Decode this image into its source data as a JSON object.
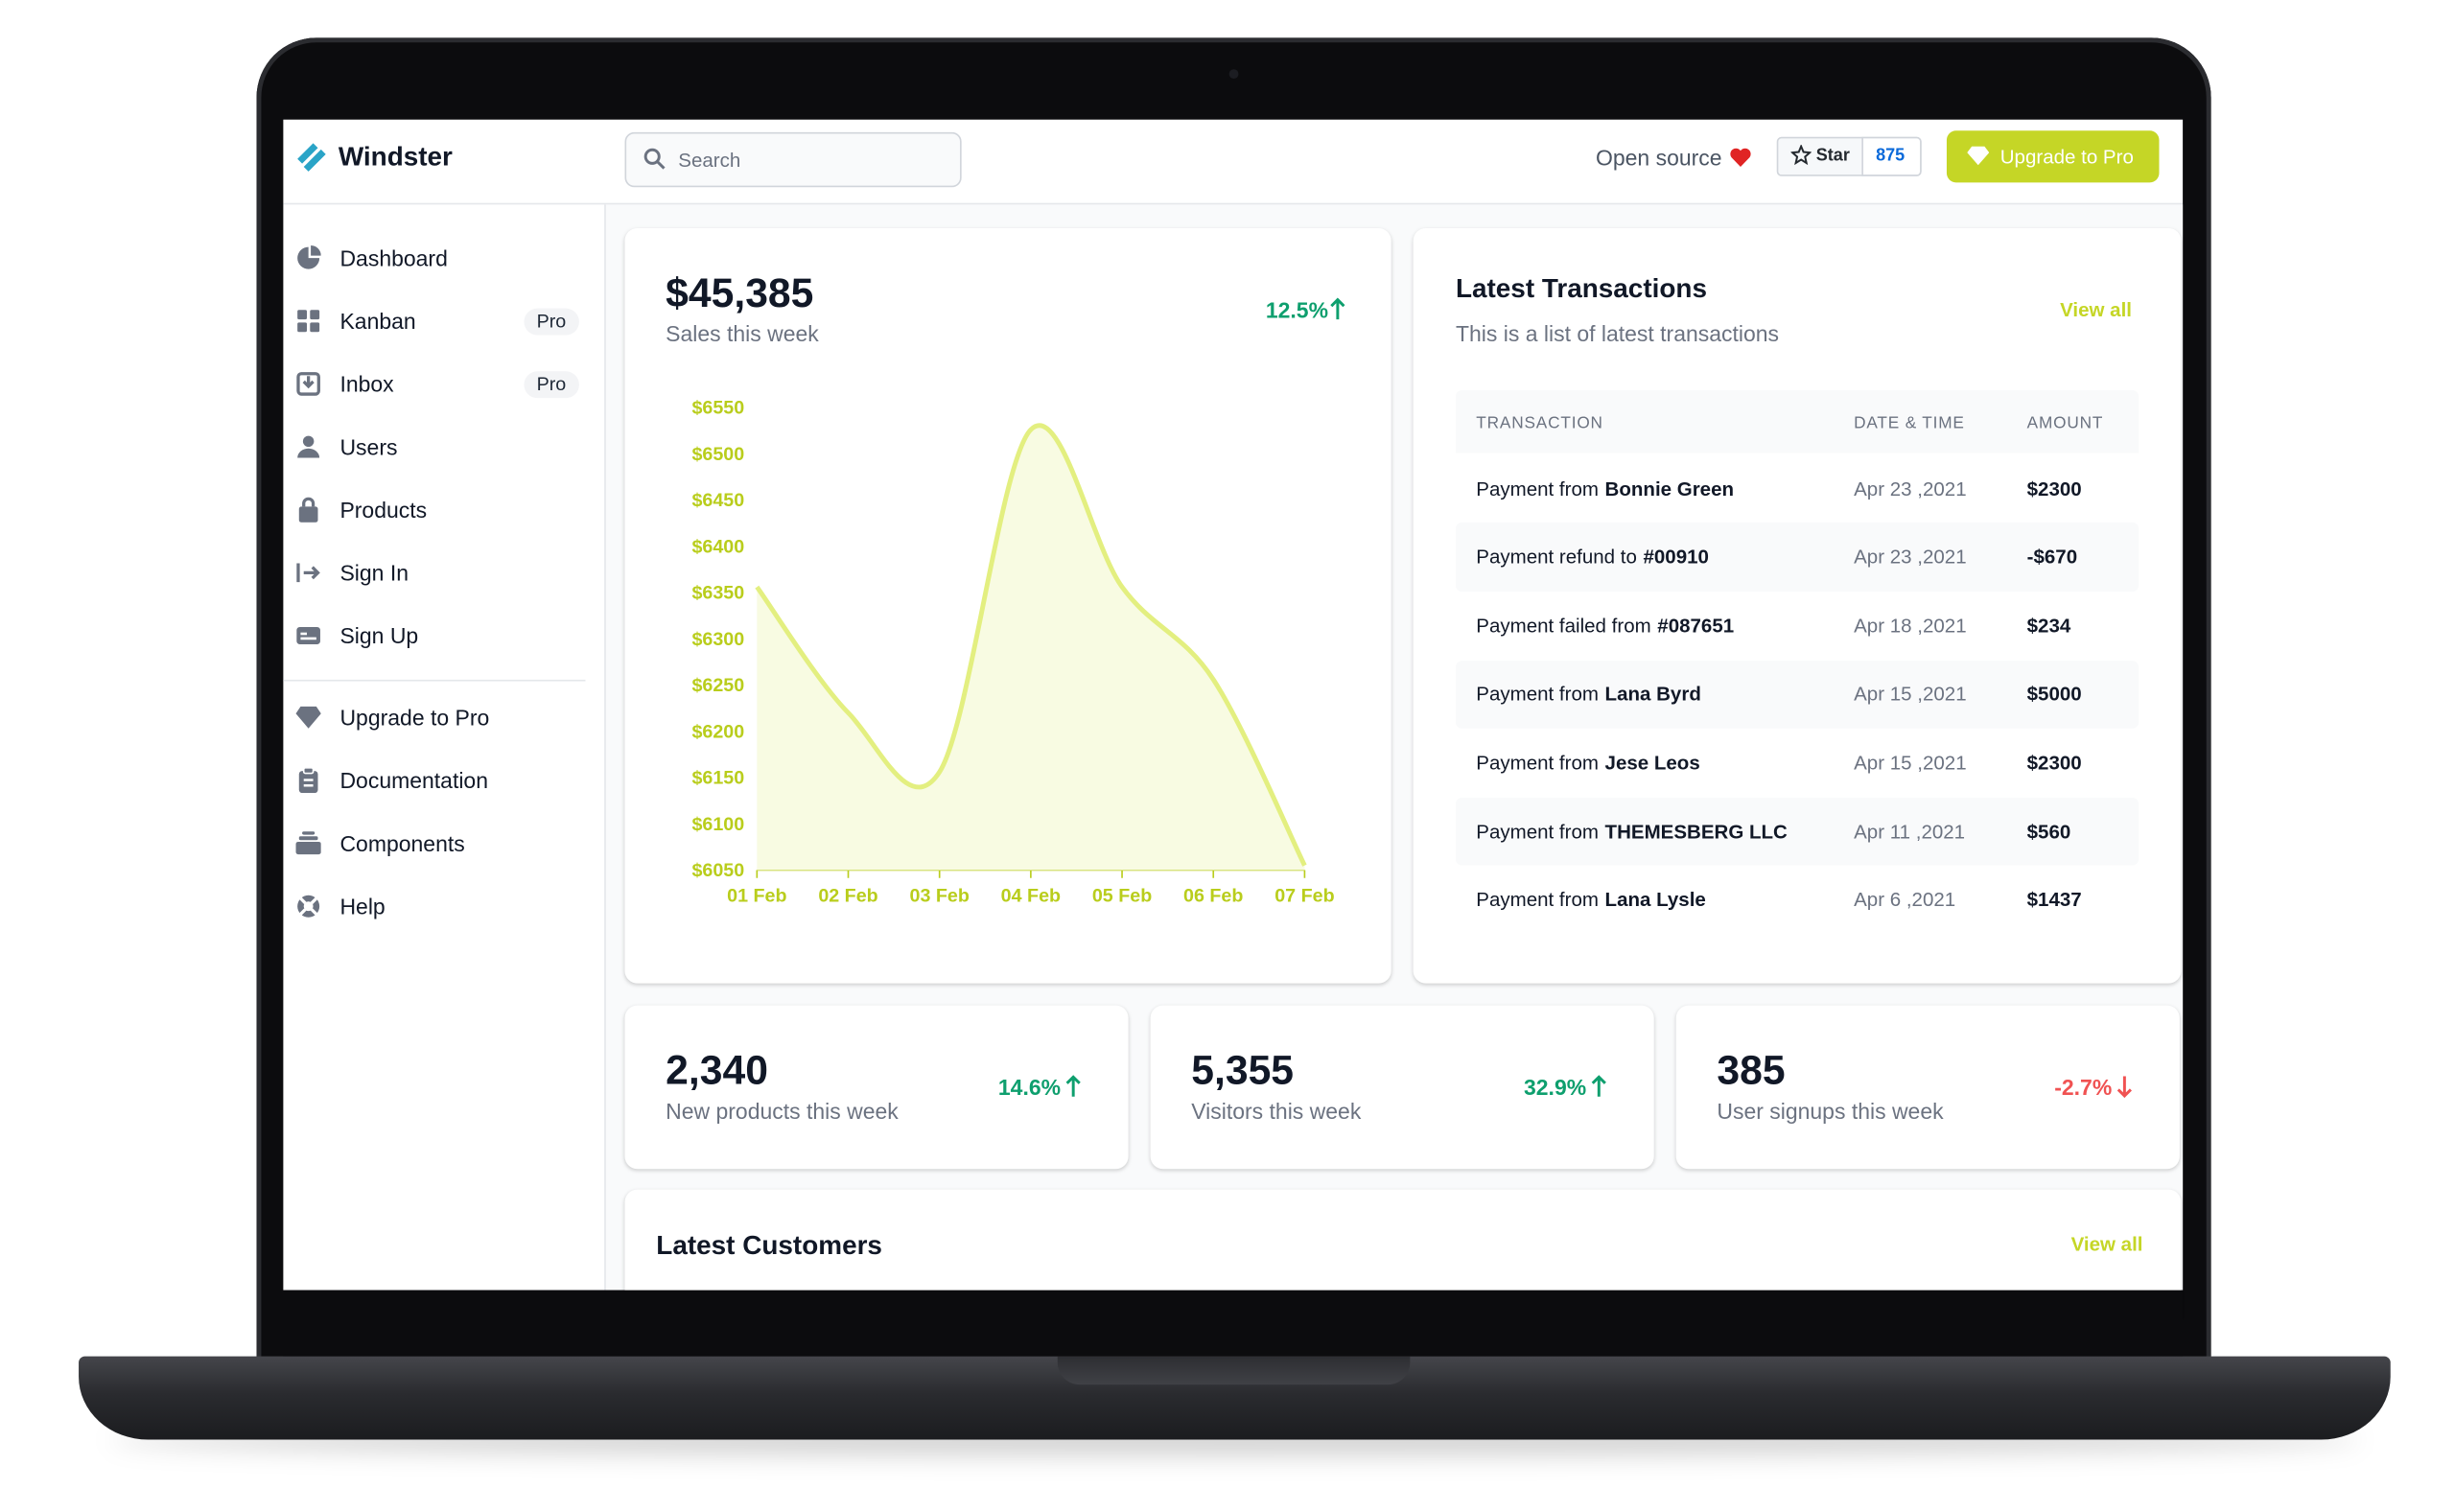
{
  "header": {
    "brand": "Windster",
    "search_placeholder": "Search",
    "open_source": "Open source",
    "star_label": "Star",
    "star_count": 875,
    "upgrade": "Upgrade to Pro"
  },
  "sidebar": {
    "items": [
      {
        "label": "Dashboard"
      },
      {
        "label": "Kanban",
        "badge": "Pro"
      },
      {
        "label": "Inbox",
        "badge": "Pro"
      },
      {
        "label": "Users"
      },
      {
        "label": "Products"
      },
      {
        "label": "Sign In"
      },
      {
        "label": "Sign Up"
      }
    ],
    "secondary": [
      "Upgrade to Pro",
      "Documentation",
      "Components",
      "Help"
    ]
  },
  "sales_card": {
    "total": "$45,385",
    "subtitle": "Sales this week",
    "change": "12.5%"
  },
  "chart_data": {
    "type": "area",
    "categories": [
      "01 Feb",
      "02 Feb",
      "03 Feb",
      "04 Feb",
      "05 Feb",
      "06 Feb",
      "07 Feb"
    ],
    "values": [
      6356,
      6220,
      6156,
      6526,
      6356,
      6256,
      6055
    ],
    "color": "#e3ef80",
    "fill": "#f8fbe2",
    "label_color": "#b9cd1c",
    "grid": false,
    "ylim": [
      6050,
      6550
    ],
    "yticks": [
      {
        "value": 6050,
        "label": "$6050"
      },
      {
        "value": 6100,
        "label": "$6100"
      },
      {
        "value": 6150,
        "label": "$6150"
      },
      {
        "value": 6200,
        "label": "$6200"
      },
      {
        "value": 6250,
        "label": "$6250"
      },
      {
        "value": 6300,
        "label": "$6300"
      },
      {
        "value": 6350,
        "label": "$6350"
      },
      {
        "value": 6400,
        "label": "$6400"
      },
      {
        "value": 6450,
        "label": "$6450"
      },
      {
        "value": 6500,
        "label": "$6500"
      },
      {
        "value": 6550,
        "label": "$6550"
      }
    ]
  },
  "transactions": {
    "title": "Latest Transactions",
    "subtitle": "This is a list of latest transactions",
    "view_all": "View all",
    "columns": [
      "TRANSACTION",
      "DATE & TIME",
      "AMOUNT"
    ],
    "rows": [
      {
        "text": "Payment from",
        "name": "Bonnie Green",
        "date": "Apr 23 ,2021",
        "amount": "$2300"
      },
      {
        "text": "Payment refund to",
        "name": "#00910",
        "date": "Apr 23 ,2021",
        "amount": "-$670"
      },
      {
        "text": "Payment failed from",
        "name": "#087651",
        "date": "Apr 18 ,2021",
        "amount": "$234"
      },
      {
        "text": "Payment from",
        "name": "Lana Byrd",
        "date": "Apr 15 ,2021",
        "amount": "$5000"
      },
      {
        "text": "Payment from",
        "name": "Jese Leos",
        "date": "Apr 15 ,2021",
        "amount": "$2300"
      },
      {
        "text": "Payment from",
        "name": "THEMESBERG LLC",
        "date": "Apr 11 ,2021",
        "amount": "$560"
      },
      {
        "text": "Payment from",
        "name": "Lana Lysle",
        "date": "Apr 6 ,2021",
        "amount": "$1437"
      }
    ]
  },
  "stats": [
    {
      "value": "2,340",
      "label": "New products this week",
      "change": "14.6%",
      "trend": "up"
    },
    {
      "value": "5,355",
      "label": "Visitors this week",
      "change": "32.9%",
      "trend": "up"
    },
    {
      "value": "385",
      "label": "User signups this week",
      "change": "-2.7%",
      "trend": "down"
    }
  ],
  "customers": {
    "title": "Latest Customers",
    "view_all": "View all"
  }
}
